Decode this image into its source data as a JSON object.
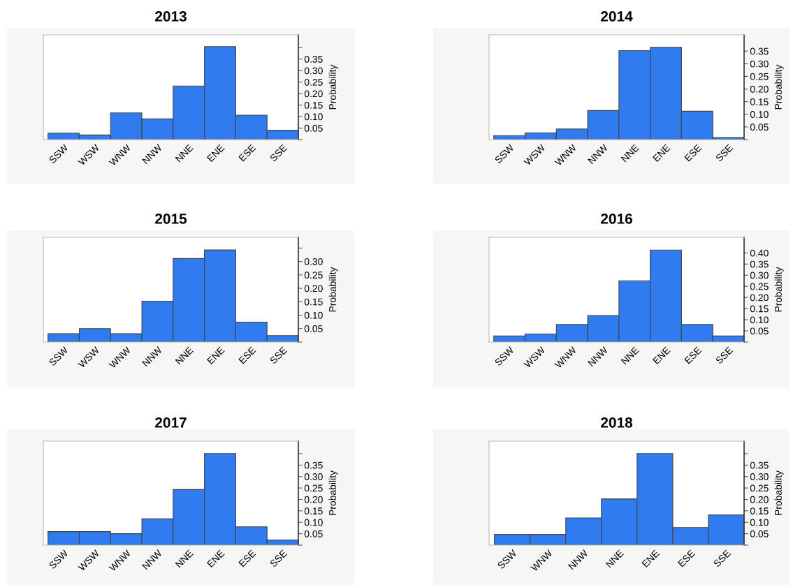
{
  "chart_data": [
    {
      "type": "bar",
      "title": "2013",
      "ylabel": "Probability",
      "categories": [
        "SSW",
        "WSW",
        "WNW",
        "NNW",
        "NNE",
        "ENE",
        "ESE",
        "SSE"
      ],
      "values": [
        0.028,
        0.02,
        0.116,
        0.09,
        0.233,
        0.404,
        0.106,
        0.041
      ],
      "color": "#2f7bef",
      "ylim": [
        0,
        0.455
      ],
      "yticks": [
        {
          "value": 0,
          "label": null
        },
        0.05,
        {
          "value": 0.1,
          "label": "0.10"
        },
        0.15,
        {
          "value": 0.2,
          "label": "0.20"
        },
        0.25,
        {
          "value": 0.3,
          "label": "0.30"
        },
        0.35,
        {
          "value": 0.4,
          "label": null
        }
      ],
      "grid": false,
      "legend": false
    },
    {
      "type": "bar",
      "title": "2014",
      "ylabel": "Probability",
      "categories": [
        "SSW",
        "WSW",
        "WNW",
        "NNW",
        "NNE",
        "ENE",
        "ESE",
        "SSE"
      ],
      "values": [
        0.016,
        0.027,
        0.042,
        0.115,
        0.352,
        0.365,
        0.112,
        0.008
      ],
      "color": "#2f7bef",
      "ylim": [
        0,
        0.414
      ],
      "yticks": [
        {
          "value": 0,
          "label": null
        },
        0.05,
        {
          "value": 0.1,
          "label": "0.10"
        },
        0.15,
        {
          "value": 0.2,
          "label": "0.20"
        },
        0.25,
        {
          "value": 0.3,
          "label": "0.30"
        },
        0.35
      ],
      "grid": false,
      "legend": false
    },
    {
      "type": "bar",
      "title": "2015",
      "ylabel": "Probability",
      "categories": [
        "SSW",
        "WSW",
        "WNW",
        "NNW",
        "NNE",
        "ENE",
        "ESE",
        "SSE"
      ],
      "values": [
        0.031,
        0.05,
        0.031,
        0.152,
        0.311,
        0.343,
        0.074,
        0.024
      ],
      "color": "#2f7bef",
      "ylim": [
        0,
        0.39
      ],
      "yticks": [
        {
          "value": 0,
          "label": null
        },
        0.05,
        {
          "value": 0.1,
          "label": "0.10"
        },
        0.15,
        {
          "value": 0.2,
          "label": "0.20"
        },
        0.25,
        {
          "value": 0.3,
          "label": "0.30"
        },
        {
          "value": 0.35,
          "label": null
        }
      ],
      "grid": false,
      "legend": false
    },
    {
      "type": "bar",
      "title": "2016",
      "ylabel": "Probability",
      "categories": [
        "SSW",
        "WSW",
        "WNW",
        "NNW",
        "NNE",
        "ENE",
        "ESE",
        "SSE"
      ],
      "values": [
        0.027,
        0.036,
        0.079,
        0.119,
        0.275,
        0.413,
        0.079,
        0.027
      ],
      "color": "#2f7bef",
      "ylim": [
        0,
        0.47
      ],
      "yticks": [
        {
          "value": 0,
          "label": null
        },
        0.05,
        {
          "value": 0.1,
          "label": "0.10"
        },
        0.15,
        {
          "value": 0.2,
          "label": "0.20"
        },
        0.25,
        {
          "value": 0.3,
          "label": "0.30"
        },
        0.35,
        {
          "value": 0.4,
          "label": "0.40"
        }
      ],
      "grid": false,
      "legend": false
    },
    {
      "type": "bar",
      "title": "2017",
      "ylabel": "Probability",
      "categories": [
        "SSW",
        "WSW",
        "WNW",
        "NNW",
        "NNE",
        "ENE",
        "ESE",
        "SSE"
      ],
      "values": [
        0.059,
        0.059,
        0.05,
        0.115,
        0.243,
        0.401,
        0.08,
        0.022
      ],
      "color": "#2f7bef",
      "ylim": [
        0,
        0.455
      ],
      "yticks": [
        {
          "value": 0,
          "label": null
        },
        0.05,
        {
          "value": 0.1,
          "label": "0.10"
        },
        0.15,
        {
          "value": 0.2,
          "label": "0.20"
        },
        0.25,
        {
          "value": 0.3,
          "label": "0.30"
        },
        0.35,
        {
          "value": 0.4,
          "label": null
        }
      ],
      "grid": false,
      "legend": false
    },
    {
      "type": "bar",
      "title": "2018",
      "ylabel": "Probability",
      "categories": [
        "SSW",
        "WNW",
        "NNW",
        "NNE",
        "ENE",
        "ESE",
        "SSE"
      ],
      "values": [
        0.047,
        0.047,
        0.119,
        0.202,
        0.401,
        0.077,
        0.132
      ],
      "color": "#2f7bef",
      "ylim": [
        0,
        0.455
      ],
      "yticks": [
        {
          "value": 0,
          "label": null
        },
        0.05,
        {
          "value": 0.1,
          "label": "0.10"
        },
        0.15,
        {
          "value": 0.2,
          "label": "0.20"
        },
        0.25,
        {
          "value": 0.3,
          "label": "0.30"
        },
        0.35,
        {
          "value": 0.4,
          "label": null
        }
      ],
      "grid": false,
      "legend": false
    }
  ]
}
